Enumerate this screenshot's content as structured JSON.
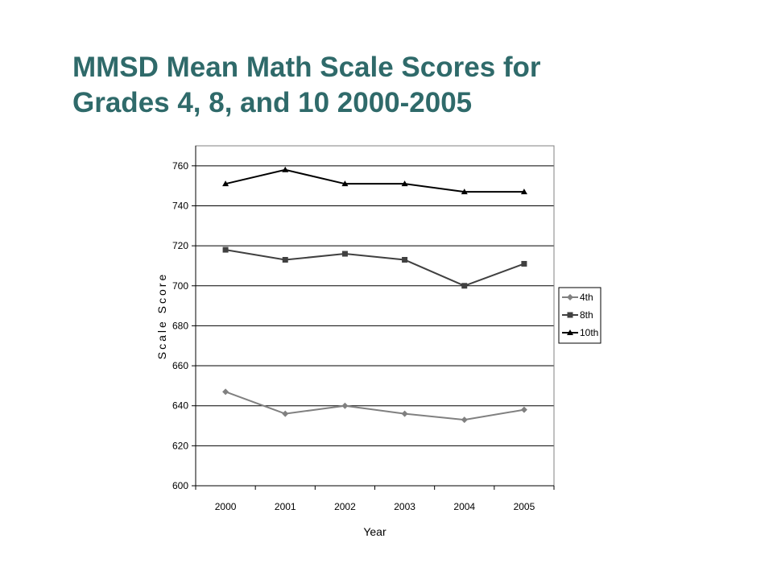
{
  "slide": {
    "title_line1": "MMSD Mean Math Scale Scores for",
    "title_line2": "Grades 4, 8, and 10 2000-2005"
  },
  "chart_data": {
    "type": "line",
    "title": "",
    "xlabel": "Year",
    "ylabel": "Scale Score",
    "categories": [
      "2000",
      "2001",
      "2002",
      "2003",
      "2004",
      "2005"
    ],
    "ylim": [
      600,
      770
    ],
    "yticks": [
      600,
      620,
      640,
      660,
      680,
      700,
      720,
      740,
      760
    ],
    "grid": "horizontal",
    "legend_position": "right",
    "series": [
      {
        "name": "4th",
        "values": [
          647,
          636,
          640,
          636,
          633,
          638
        ],
        "color": "#808080",
        "marker": "diamond"
      },
      {
        "name": "8th",
        "values": [
          718,
          713,
          716,
          713,
          700,
          711
        ],
        "color": "#404040",
        "marker": "square"
      },
      {
        "name": "10th",
        "values": [
          751,
          758,
          751,
          751,
          747,
          747
        ],
        "color": "#000000",
        "marker": "triangle"
      }
    ]
  },
  "colors": {
    "title": "#2f6a6a",
    "gridline": "#000000",
    "background": "#ffffff"
  }
}
